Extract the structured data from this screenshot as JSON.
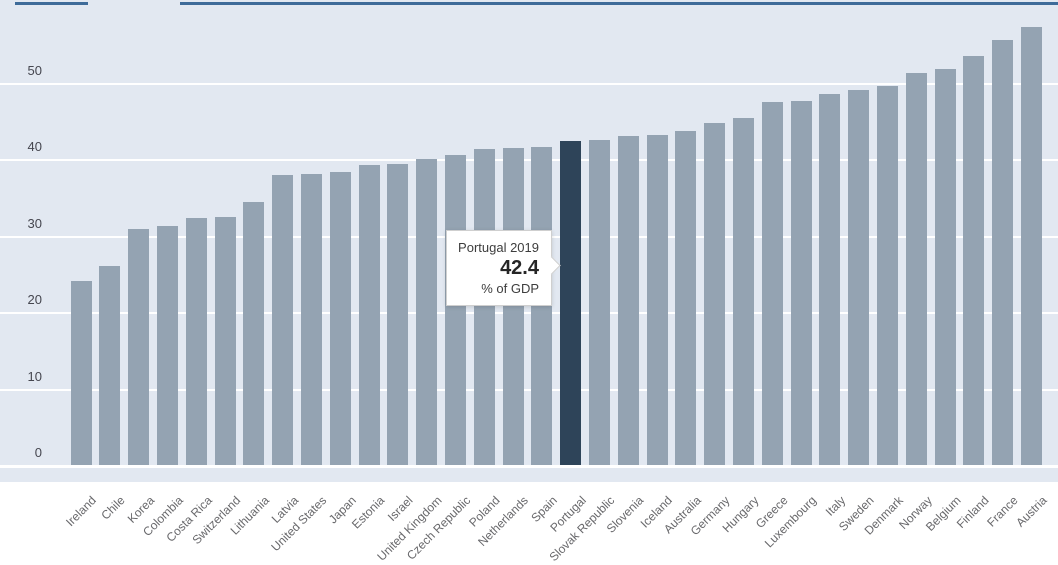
{
  "tooltip": {
    "title": "Portugal 2019",
    "value": "42.4",
    "unit": "% of GDP"
  },
  "chart_data": {
    "type": "bar",
    "title": "",
    "xlabel": "",
    "ylabel": "% of GDP",
    "ylim": [
      0,
      58
    ],
    "yticks": [
      0,
      10,
      20,
      30,
      40,
      50
    ],
    "grid": "horizontal white gridlines on light blue-gray plot background",
    "legend": "none",
    "sort": "ascending",
    "categories": [
      "Ireland",
      "Chile",
      "Korea",
      "Colombia",
      "Costa Rica",
      "Switzerland",
      "Lithuania",
      "Latvia",
      "United States",
      "Japan",
      "Estonia",
      "Israel",
      "United Kingdom",
      "Czech Republic",
      "Poland",
      "Netherlands",
      "Spain",
      "Portugal",
      "Slovak Republic",
      "Slovenia",
      "Iceland",
      "Australia",
      "Germany",
      "Hungary",
      "Greece",
      "Luxembourg",
      "Italy",
      "Sweden",
      "Denmark",
      "Norway",
      "Belgium",
      "Finland",
      "France",
      "Austria"
    ],
    "values": [
      24.1,
      26.0,
      30.9,
      31.2,
      32.3,
      32.4,
      34.4,
      37.9,
      38.0,
      38.3,
      39.2,
      39.4,
      40.0,
      40.5,
      41.3,
      41.4,
      41.6,
      42.4,
      42.5,
      43.0,
      43.2,
      43.6,
      44.7,
      45.3,
      47.4,
      47.6,
      48.5,
      49.0,
      49.5,
      51.3,
      51.8,
      53.4,
      55.5,
      57.2
    ],
    "highlight": {
      "category": "Portugal",
      "year": "2019",
      "value": 42.4,
      "unit": "% of GDP"
    },
    "colors": {
      "bar": "#94a3b2",
      "highlight_bar": "#2e4459",
      "plot_background": "#e2e8f1",
      "gridline": "#ffffff",
      "top_border": "#3e6b99",
      "y_tick_text": "#45464f",
      "x_label_text": "#68686b",
      "page_background": "#ffffff"
    }
  }
}
